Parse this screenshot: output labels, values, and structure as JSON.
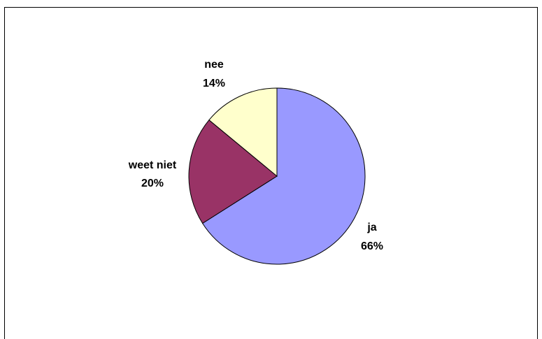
{
  "chart_data": {
    "type": "pie",
    "title": "",
    "slices": [
      {
        "label": "ja",
        "pct_label": "66%",
        "value": 66,
        "color": "#9999ff"
      },
      {
        "label": "weet niet",
        "pct_label": "20%",
        "value": 20,
        "color": "#993366"
      },
      {
        "label": "nee",
        "pct_label": "14%",
        "value": 14,
        "color": "#ffffcc"
      }
    ],
    "legend": "none"
  }
}
